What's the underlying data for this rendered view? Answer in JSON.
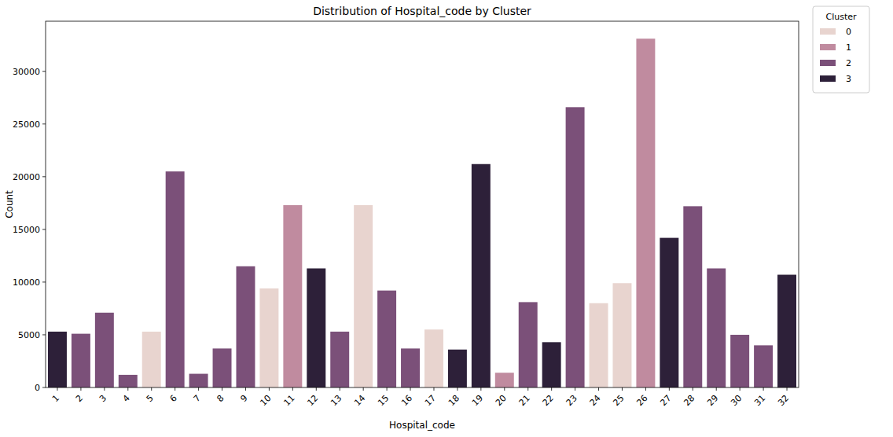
{
  "chart_data": {
    "type": "bar",
    "title": "Distribution of Hospital_code by Cluster",
    "x_label": "Hospital_code",
    "y_label": "Count",
    "legend_title": "Cluster",
    "legend": "right",
    "grid": false,
    "categories": [
      "1",
      "2",
      "3",
      "4",
      "5",
      "6",
      "7",
      "8",
      "9",
      "10",
      "11",
      "12",
      "13",
      "14",
      "15",
      "16",
      "17",
      "18",
      "19",
      "20",
      "21",
      "22",
      "23",
      "24",
      "25",
      "26",
      "27",
      "28",
      "29",
      "30",
      "31",
      "32"
    ],
    "series": [
      {
        "name": "0",
        "color": "#e8d4cf",
        "values": [
          null,
          null,
          null,
          null,
          5300,
          null,
          null,
          null,
          null,
          9400,
          null,
          null,
          null,
          17300,
          null,
          null,
          5500,
          null,
          null,
          null,
          null,
          null,
          null,
          8000,
          9900,
          null,
          null,
          null,
          null,
          null,
          null,
          null
        ]
      },
      {
        "name": "1",
        "color": "#c08b9f",
        "values": [
          null,
          null,
          null,
          null,
          null,
          null,
          null,
          null,
          null,
          null,
          17300,
          null,
          null,
          null,
          null,
          null,
          null,
          null,
          null,
          1400,
          null,
          null,
          null,
          null,
          null,
          33100,
          null,
          null,
          null,
          null,
          null,
          null
        ]
      },
      {
        "name": "2",
        "color": "#7b5079",
        "values": [
          null,
          5100,
          7100,
          1200,
          null,
          20500,
          1300,
          3700,
          11500,
          null,
          null,
          null,
          5300,
          null,
          9200,
          3700,
          null,
          null,
          null,
          null,
          8100,
          null,
          26600,
          null,
          null,
          null,
          null,
          17200,
          11300,
          5000,
          4000,
          null
        ]
      },
      {
        "name": "3",
        "color": "#2d2039",
        "values": [
          5300,
          null,
          null,
          null,
          null,
          null,
          null,
          null,
          null,
          null,
          null,
          11300,
          null,
          null,
          null,
          null,
          null,
          3600,
          21200,
          null,
          null,
          4300,
          null,
          null,
          null,
          null,
          14200,
          null,
          null,
          null,
          null,
          10700
        ]
      }
    ],
    "ylim": [
      0,
      34755
    ],
    "yticks": [
      0,
      5000,
      10000,
      15000,
      20000,
      25000,
      30000
    ]
  }
}
